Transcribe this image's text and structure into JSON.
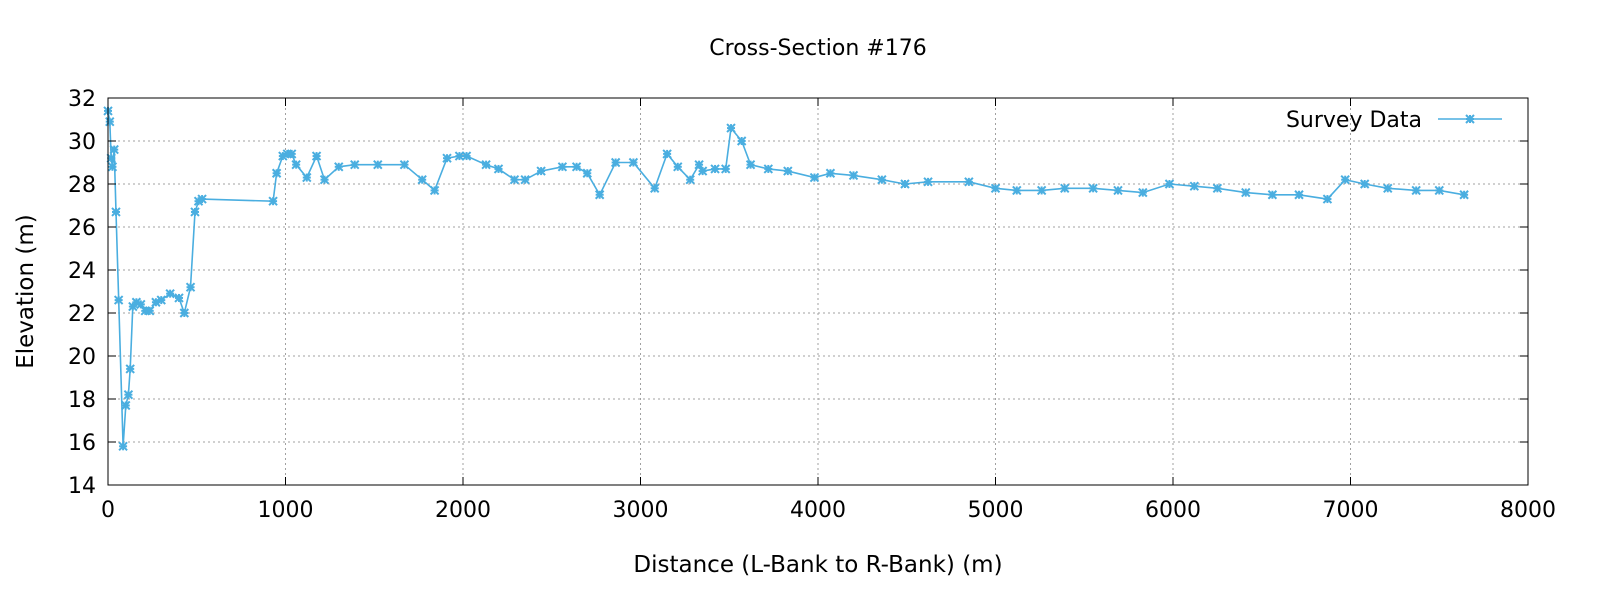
{
  "chart_data": {
    "type": "line",
    "title": "Cross-Section #176",
    "xlabel": "Distance (L-Bank to R-Bank) (m)",
    "ylabel": "Elevation (m)",
    "xlim": [
      0,
      8000
    ],
    "ylim": [
      14,
      32
    ],
    "xticks": [
      0,
      1000,
      2000,
      3000,
      4000,
      5000,
      6000,
      7000,
      8000
    ],
    "yticks": [
      14,
      16,
      18,
      20,
      22,
      24,
      26,
      28,
      30,
      32
    ],
    "grid": true,
    "legend_position": "top-right",
    "series": [
      {
        "name": "Survey Data",
        "color": "#4aaee0",
        "marker": "x-star",
        "x": [
          0,
          10,
          18,
          25,
          35,
          45,
          60,
          85,
          100,
          115,
          125,
          140,
          160,
          185,
          210,
          235,
          270,
          300,
          350,
          400,
          430,
          465,
          490,
          510,
          530,
          930,
          950,
          985,
          1010,
          1035,
          1060,
          1120,
          1175,
          1220,
          1300,
          1390,
          1520,
          1670,
          1770,
          1840,
          1910,
          1980,
          2020,
          2130,
          2200,
          2290,
          2350,
          2440,
          2560,
          2640,
          2700,
          2770,
          2860,
          2960,
          3080,
          3150,
          3210,
          3280,
          3330,
          3350,
          3420,
          3480,
          3510,
          3570,
          3620,
          3720,
          3830,
          3980,
          4070,
          4200,
          4360,
          4490,
          4620,
          4850,
          5000,
          5120,
          5260,
          5390,
          5550,
          5690,
          5830,
          5980,
          6120,
          6250,
          6410,
          6560,
          6710,
          6870,
          6970,
          7080,
          7210,
          7370,
          7500,
          7640
        ],
        "y": [
          31.4,
          30.9,
          29.2,
          28.8,
          29.6,
          26.7,
          22.6,
          15.8,
          17.7,
          18.2,
          19.4,
          22.3,
          22.5,
          22.4,
          22.1,
          22.1,
          22.5,
          22.6,
          22.9,
          22.7,
          22.0,
          23.2,
          26.7,
          27.2,
          27.3,
          27.2,
          28.5,
          29.3,
          29.4,
          29.4,
          28.9,
          28.3,
          29.3,
          28.2,
          28.8,
          28.9,
          28.9,
          28.9,
          28.2,
          27.7,
          29.2,
          29.3,
          29.3,
          28.9,
          28.7,
          28.2,
          28.2,
          28.6,
          28.8,
          28.8,
          28.5,
          27.5,
          29.0,
          29.0,
          27.8,
          29.4,
          28.8,
          28.2,
          28.9,
          28.6,
          28.7,
          28.7,
          30.6,
          30.0,
          28.9,
          28.7,
          28.6,
          28.3,
          28.5,
          28.4,
          28.2,
          28.0,
          28.1,
          28.1,
          27.8,
          27.7,
          27.7,
          27.8,
          27.8,
          27.7,
          27.6,
          28.0,
          27.9,
          27.8,
          27.6,
          27.5,
          27.5,
          27.3,
          28.2,
          28.0,
          27.8,
          27.7,
          27.7,
          27.5
        ]
      }
    ]
  }
}
